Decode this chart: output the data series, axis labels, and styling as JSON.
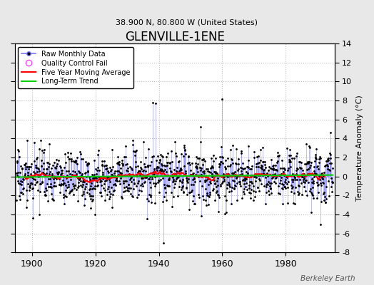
{
  "title": "GLENVILLE-1ENE",
  "subtitle": "38.900 N, 80.800 W (United States)",
  "ylabel": "Temperature Anomaly (°C)",
  "watermark": "Berkeley Earth",
  "year_start": 1895,
  "year_end": 1994,
  "ylim": [
    -8,
    14
  ],
  "yticks": [
    -8,
    -6,
    -4,
    -2,
    0,
    2,
    4,
    6,
    8,
    10,
    12,
    14
  ],
  "xticks": [
    1900,
    1920,
    1940,
    1960,
    1980
  ],
  "raw_line_color": "#7777ff",
  "raw_marker_color": "#000000",
  "ma_color": "#ff0000",
  "trend_color": "#00cc00",
  "qc_color": "#ff44ff",
  "background_color": "#e8e8e8",
  "plot_background": "#ffffff",
  "grid_color": "#bbbbbb",
  "seed": 17
}
